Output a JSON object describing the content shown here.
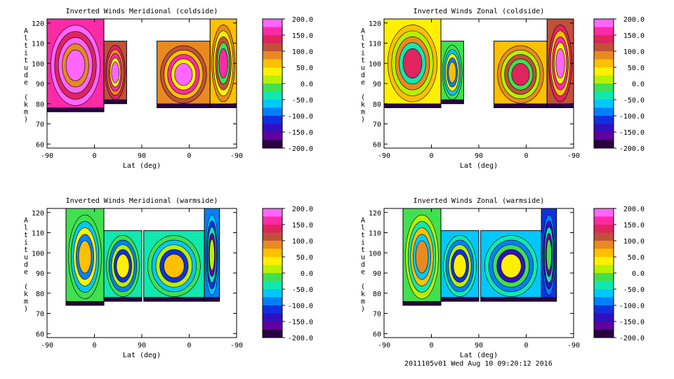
{
  "footer": "2011105v01 Wed Aug 10 09:20:12 2016",
  "colorbar": {
    "ticks": [
      "200.0",
      "150.0",
      "100.0",
      "50.0",
      "0.0",
      "-50.0",
      "-100.0",
      "-150.0",
      "-200.0"
    ],
    "colors": [
      "#ff66ff",
      "#ff2aa5",
      "#e0245e",
      "#c0503a",
      "#e88a20",
      "#ffc000",
      "#fff000",
      "#b8f000",
      "#40e050",
      "#10e8b0",
      "#00c8ff",
      "#0080ff",
      "#1030e0",
      "#3010c0",
      "#6000a0",
      "#2a0040"
    ]
  },
  "chart_data": [
    {
      "type": "heatmap",
      "title": "Inverted Winds Meridional (coldside)",
      "xlabel": "Lat (deg)",
      "ylabel": "Altitude (km)",
      "x_ticks": [
        "-90",
        "0",
        "90",
        "0",
        "-90"
      ],
      "y_ticks": [
        "60",
        "70",
        "80",
        "90",
        "100",
        "110",
        "120"
      ],
      "ylim": [
        58,
        122
      ],
      "clim": [
        -200,
        200
      ],
      "regions": [
        {
          "x": [
            0.0,
            0.3
          ],
          "alt": [
            76,
            122
          ],
          "level": 165
        },
        {
          "x": [
            0.3,
            0.42
          ],
          "alt": [
            80,
            111
          ],
          "level": 120
        },
        {
          "x": [
            0.58,
            0.86
          ],
          "alt": [
            78,
            111
          ],
          "level": 100
        },
        {
          "x": [
            0.86,
            1.0
          ],
          "alt": [
            78,
            122
          ],
          "level": 70
        }
      ]
    },
    {
      "type": "heatmap",
      "title": "Inverted Winds Zonal (coldside)",
      "xlabel": "Lat (deg)",
      "ylabel": "Altitude (km)",
      "x_ticks": [
        "-90",
        "0",
        "90",
        "0",
        "-90"
      ],
      "y_ticks": [
        "60",
        "70",
        "80",
        "90",
        "100",
        "110",
        "120"
      ],
      "ylim": [
        58,
        122
      ],
      "clim": [
        -200,
        200
      ],
      "regions": [
        {
          "x": [
            0.0,
            0.3
          ],
          "alt": [
            78,
            122
          ],
          "level": 40
        },
        {
          "x": [
            0.3,
            0.42
          ],
          "alt": [
            80,
            111
          ],
          "level": -20
        },
        {
          "x": [
            0.58,
            0.86
          ],
          "alt": [
            78,
            111
          ],
          "level": 60
        },
        {
          "x": [
            0.86,
            1.0
          ],
          "alt": [
            78,
            122
          ],
          "level": 110
        }
      ]
    },
    {
      "type": "heatmap",
      "title": "Inverted Winds Meridional (warmside)",
      "xlabel": "Lat (deg)",
      "ylabel": "Altitude (km)",
      "x_ticks": [
        "-90",
        "0",
        "90",
        "0",
        "-90"
      ],
      "y_ticks": [
        "60",
        "70",
        "80",
        "90",
        "100",
        "110",
        "120"
      ],
      "ylim": [
        58,
        122
      ],
      "clim": [
        -200,
        200
      ],
      "regions": [
        {
          "x": [
            0.1,
            0.3
          ],
          "alt": [
            74,
            122
          ],
          "level": -20
        },
        {
          "x": [
            0.3,
            0.5
          ],
          "alt": [
            76,
            111
          ],
          "level": -40
        },
        {
          "x": [
            0.51,
            0.83
          ],
          "alt": [
            76,
            111
          ],
          "level": -30
        },
        {
          "x": [
            0.83,
            0.91
          ],
          "alt": [
            76,
            122
          ],
          "level": -80
        }
      ]
    },
    {
      "type": "heatmap",
      "title": "Inverted Winds Zonal (warmside)",
      "xlabel": "Lat (deg)",
      "ylabel": "Altitude (km)",
      "x_ticks": [
        "-90",
        "0",
        "90",
        "0",
        "-90"
      ],
      "y_ticks": [
        "60",
        "70",
        "80",
        "90",
        "100",
        "110",
        "120"
      ],
      "ylim": [
        58,
        122
      ],
      "clim": [
        -200,
        200
      ],
      "regions": [
        {
          "x": [
            0.1,
            0.3
          ],
          "alt": [
            74,
            122
          ],
          "level": 0
        },
        {
          "x": [
            0.3,
            0.5
          ],
          "alt": [
            76,
            111
          ],
          "level": -50
        },
        {
          "x": [
            0.51,
            0.83
          ],
          "alt": [
            76,
            111
          ],
          "level": -60
        },
        {
          "x": [
            0.83,
            0.91
          ],
          "alt": [
            76,
            122
          ],
          "level": -100
        }
      ]
    }
  ]
}
